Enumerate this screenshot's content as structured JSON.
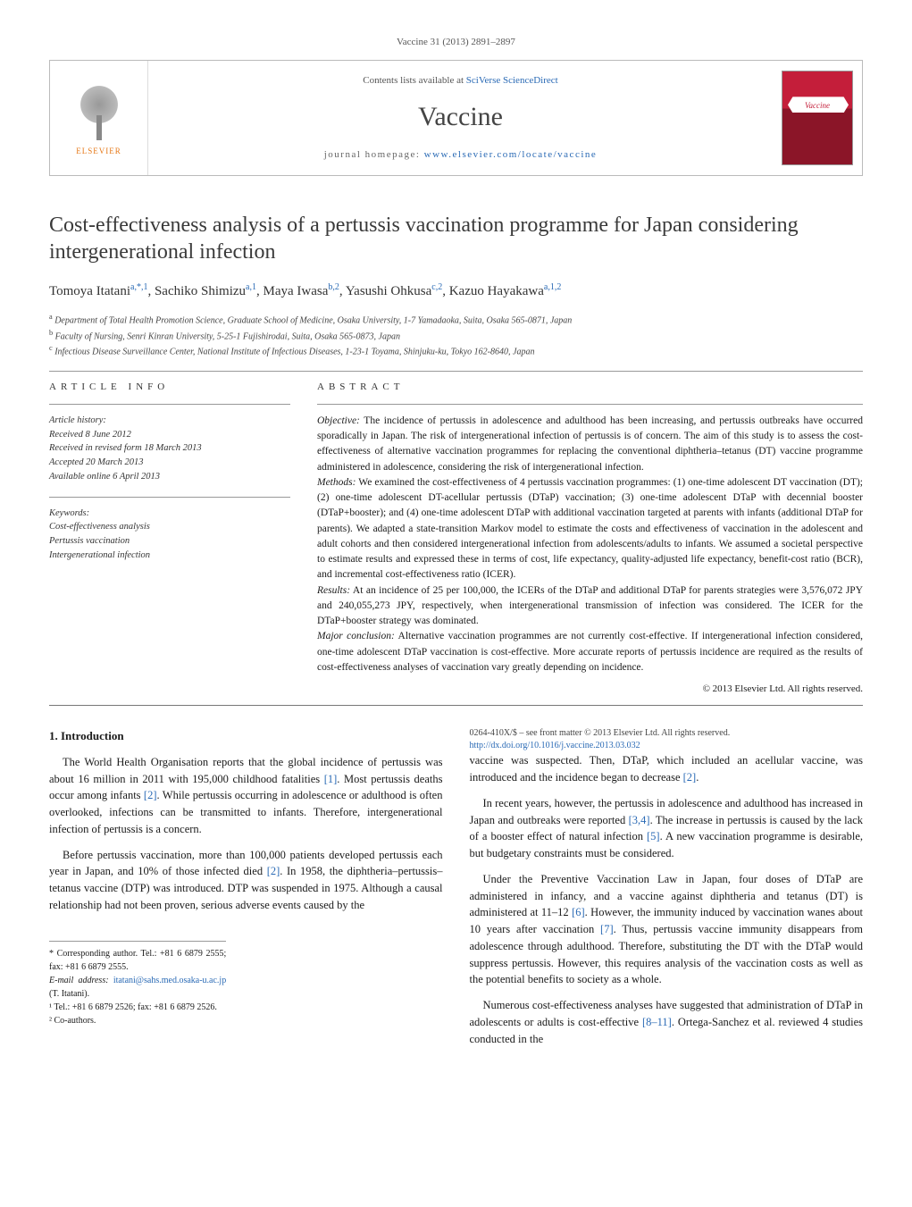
{
  "citation": "Vaccine 31 (2013) 2891–2897",
  "header": {
    "publisher_label": "ELSEVIER",
    "contents_prefix": "Contents lists available at ",
    "contents_link": "SciVerse ScienceDirect",
    "journal_title": "Vaccine",
    "homepage_prefix": "journal homepage: ",
    "homepage_link": "www.elsevier.com/locate/vaccine"
  },
  "article": {
    "title": "Cost-effectiveness analysis of a pertussis vaccination programme for Japan considering intergenerational infection",
    "authors_html": "Tomoya Itatani<sup>a,*,1</sup>, Sachiko Shimizu<sup>a,1</sup>, Maya Iwasa<sup>b,2</sup>, Yasushi Ohkusa<sup>c,2</sup>, Kazuo Hayakawa<sup>a,1,2</sup>",
    "affiliations": {
      "a": "Department of Total Health Promotion Science, Graduate School of Medicine, Osaka University, 1-7 Yamadaoka, Suita, Osaka 565-0871, Japan",
      "b": "Faculty of Nursing, Senri Kinran University, 5-25-1 Fujishirodai, Suita, Osaka 565-0873, Japan",
      "c": "Infectious Disease Surveillance Center, National Institute of Infectious Diseases, 1-23-1 Toyama, Shinjuku-ku, Tokyo 162-8640, Japan"
    }
  },
  "meta": {
    "article_info_label": "ARTICLE INFO",
    "abstract_label": "ABSTRACT",
    "history_label": "Article history:",
    "received": "Received 8 June 2012",
    "revised": "Received in revised form 18 March 2013",
    "accepted": "Accepted 20 March 2013",
    "online": "Available online 6 April 2013",
    "keywords_label": "Keywords:",
    "keywords": [
      "Cost-effectiveness analysis",
      "Pertussis vaccination",
      "Intergenerational infection"
    ]
  },
  "abstract": {
    "objective_label": "Objective:",
    "objective": "The incidence of pertussis in adolescence and adulthood has been increasing, and pertussis outbreaks have occurred sporadically in Japan. The risk of intergenerational infection of pertussis is of concern. The aim of this study is to assess the cost-effectiveness of alternative vaccination programmes for replacing the conventional diphtheria–tetanus (DT) vaccine programme administered in adolescence, considering the risk of intergenerational infection.",
    "methods_label": "Methods:",
    "methods": "We examined the cost-effectiveness of 4 pertussis vaccination programmes: (1) one-time adolescent DT vaccination (DT); (2) one-time adolescent DT-acellular pertussis (DTaP) vaccination; (3) one-time adolescent DTaP with decennial booster (DTaP+booster); and (4) one-time adolescent DTaP with additional vaccination targeted at parents with infants (additional DTaP for parents). We adapted a state-transition Markov model to estimate the costs and effectiveness of vaccination in the adolescent and adult cohorts and then considered intergenerational infection from adolescents/adults to infants. We assumed a societal perspective to estimate results and expressed these in terms of cost, life expectancy, quality-adjusted life expectancy, benefit-cost ratio (BCR), and incremental cost-effectiveness ratio (ICER).",
    "results_label": "Results:",
    "results": "At an incidence of 25 per 100,000, the ICERs of the DTaP and additional DTaP for parents strategies were 3,576,072 JPY and 240,055,273 JPY, respectively, when intergenerational transmission of infection was considered. The ICER for the DTaP+booster strategy was dominated.",
    "conclusion_label": "Major conclusion:",
    "conclusion": "Alternative vaccination programmes are not currently cost-effective. If intergenerational infection considered, one-time adolescent DTaP vaccination is cost-effective. More accurate reports of pertussis incidence are required as the results of cost-effectiveness analyses of vaccination vary greatly depending on incidence.",
    "copyright": "© 2013 Elsevier Ltd. All rights reserved."
  },
  "body": {
    "section_heading": "1. Introduction",
    "p1": "The World Health Organisation reports that the global incidence of pertussis was about 16 million in 2011 with 195,000 childhood fatalities [1]. Most pertussis deaths occur among infants [2]. While pertussis occurring in adolescence or adulthood is often overlooked, infections can be transmitted to infants. Therefore, intergenerational infection of pertussis is a concern.",
    "p2": "Before pertussis vaccination, more than 100,000 patients developed pertussis each year in Japan, and 10% of those infected died [2]. In 1958, the diphtheria–pertussis–tetanus vaccine (DTP) was introduced. DTP was suspended in 1975. Although a causal relationship had not been proven, serious adverse events caused by the",
    "p3": "vaccine was suspected. Then, DTaP, which included an acellular vaccine, was introduced and the incidence began to decrease [2].",
    "p4": "In recent years, however, the pertussis in adolescence and adulthood has increased in Japan and outbreaks were reported [3,4]. The increase in pertussis is caused by the lack of a booster effect of natural infection [5]. A new vaccination programme is desirable, but budgetary constraints must be considered.",
    "p5": "Under the Preventive Vaccination Law in Japan, four doses of DTaP are administered in infancy, and a vaccine against diphtheria and tetanus (DT) is administered at 11–12 [6]. However, the immunity induced by vaccination wanes about 10 years after vaccination [7]. Thus, pertussis vaccine immunity disappears from adolescence through adulthood. Therefore, substituting the DT with the DTaP would suppress pertussis. However, this requires analysis of the vaccination costs as well as the potential benefits to society as a whole.",
    "p6": "Numerous cost-effectiveness analyses have suggested that administration of DTaP in adolescents or adults is cost-effective [8–11]. Ortega-Sanchez et al. reviewed 4 studies conducted in the"
  },
  "footnotes": {
    "corr": "* Corresponding author. Tel.: +81 6 6879 2555; fax: +81 6 6879 2555.",
    "email_label": "E-mail address:",
    "email": "itatani@sahs.med.osaka-u.ac.jp",
    "email_suffix": "(T. Itatani).",
    "fn1": "¹ Tel.: +81 6 6879 2526; fax: +81 6 6879 2526.",
    "fn2": "² Co-authors."
  },
  "bottom": {
    "issn": "0264-410X/$ – see front matter © 2013 Elsevier Ltd. All rights reserved.",
    "doi": "http://dx.doi.org/10.1016/j.vaccine.2013.03.032"
  },
  "colors": {
    "link": "#2a6ab5",
    "elsevier_orange": "#e67817",
    "cover_red": "#c41e3a"
  }
}
